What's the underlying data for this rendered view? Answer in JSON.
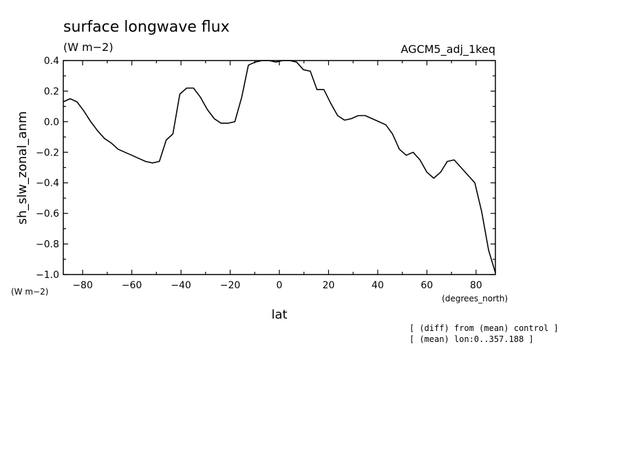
{
  "chart_data": {
    "type": "line",
    "title": "surface longwave flux",
    "units": "(W m−2)",
    "run_name": "AGCM5_adj_1keq",
    "ylabel": "sh_slw_zonal_anm",
    "y_units": "(W m−2)",
    "xlabel": "lat",
    "x_units": "(degrees_north)",
    "notes": [
      "[ (diff) from (mean) control ]",
      "[ (mean) lon:0..357.188 ]"
    ],
    "xlim": [
      -87.86,
      87.86
    ],
    "ylim": [
      -1.0,
      0.4
    ],
    "x_ticks": [
      -80,
      -60,
      -40,
      -20,
      0,
      20,
      40,
      60,
      80
    ],
    "x_tick_labels": [
      "−80",
      "−60",
      "−40",
      "−20",
      "0",
      "20",
      "40",
      "60",
      "80"
    ],
    "y_ticks": [
      0.4,
      0.2,
      0.0,
      -0.2,
      -0.4,
      -0.6,
      -0.8,
      -1.0
    ],
    "y_tick_labels": [
      "0.4",
      "0.2",
      "0.0",
      "−0.2",
      "−0.4",
      "−0.6",
      "−0.8",
      "−1.0"
    ],
    "grid": false,
    "series": [
      {
        "x": [
          -87.9,
          -85.1,
          -82.3,
          -79.5,
          -76.7,
          -73.9,
          -71.1,
          -68.3,
          -65.6,
          -62.8,
          -60.0,
          -57.2,
          -54.4,
          -51.6,
          -48.8,
          -46.0,
          -43.3,
          -40.5,
          -37.7,
          -34.9,
          -32.1,
          -29.3,
          -26.5,
          -23.7,
          -20.9,
          -18.1,
          -15.3,
          -12.6,
          -9.8,
          -7.0,
          -4.2,
          -1.4,
          1.4,
          4.2,
          7.0,
          9.8,
          12.6,
          15.3,
          18.1,
          20.9,
          23.7,
          26.5,
          29.3,
          32.1,
          34.9,
          37.7,
          40.5,
          43.3,
          46.0,
          48.8,
          51.6,
          54.4,
          57.2,
          60.0,
          62.8,
          65.6,
          68.3,
          71.1,
          73.9,
          76.7,
          79.5,
          82.3,
          85.1,
          87.9
        ],
        "y": [
          0.13,
          0.15,
          0.13,
          0.07,
          0.0,
          -0.06,
          -0.11,
          -0.14,
          -0.18,
          -0.2,
          -0.22,
          -0.24,
          -0.26,
          -0.27,
          -0.26,
          -0.12,
          -0.08,
          0.18,
          0.22,
          0.22,
          0.16,
          0.08,
          0.02,
          -0.01,
          -0.01,
          0.0,
          0.16,
          0.37,
          0.39,
          0.4,
          0.4,
          0.39,
          0.4,
          0.4,
          0.39,
          0.34,
          0.33,
          0.21,
          0.21,
          0.12,
          0.04,
          0.01,
          0.02,
          0.04,
          0.04,
          0.02,
          0.0,
          -0.02,
          -0.08,
          -0.18,
          -0.22,
          -0.2,
          -0.25,
          -0.33,
          -0.37,
          -0.33,
          -0.26,
          -0.25,
          -0.3,
          -0.35,
          -0.4,
          -0.59,
          -0.84,
          -0.99
        ]
      }
    ]
  }
}
